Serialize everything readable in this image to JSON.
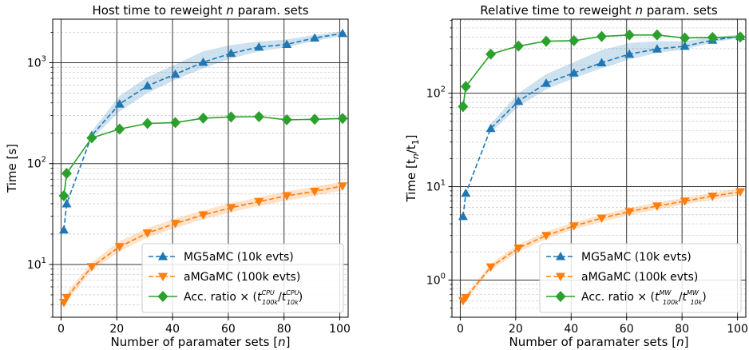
{
  "chart_data": [
    {
      "type": "line",
      "title": "Host time to reweight n param. sets",
      "title_parts": [
        "Host time to reweight ",
        "n",
        " param. sets"
      ],
      "xlabel": "Number of paramater sets [n]",
      "xlabel_parts": [
        "Number of paramater sets [",
        "n",
        "]"
      ],
      "ylabel": "Time [s]",
      "ylabel_parts": [
        "Time [s]"
      ],
      "yscale": "log",
      "xlim": [
        -3,
        103
      ],
      "ylim": [
        3,
        2700
      ],
      "xticks": [
        0,
        20,
        40,
        60,
        80,
        100
      ],
      "xtick_labels": [
        "0",
        "20",
        "40",
        "60",
        "80",
        "100"
      ],
      "yticks": [
        {
          "value": 10,
          "base": "10",
          "exp": "1"
        },
        {
          "value": 100,
          "base": "10",
          "exp": "2"
        },
        {
          "value": 1000,
          "base": "10",
          "exp": "3"
        }
      ],
      "grid": true,
      "legend_position": "lower right",
      "x": [
        1,
        2,
        11,
        21,
        31,
        41,
        51,
        61,
        71,
        81,
        91,
        101
      ],
      "series": [
        {
          "name": "MG5aMC (10k evts)",
          "color": "#1f77b4",
          "marker": "triangle-up",
          "linestyle": "dashed",
          "values": [
            22,
            40,
            190,
            390,
            590,
            770,
            1010,
            1240,
            1430,
            1520,
            1760,
            1950
          ],
          "band_low": [
            null,
            null,
            175,
            330,
            500,
            680,
            880,
            1100,
            1300,
            1420,
            1640,
            1850
          ],
          "band_high": [
            null,
            null,
            210,
            470,
            720,
            960,
            1300,
            1500,
            1620,
            1700,
            1880,
            2050
          ]
        },
        {
          "name": "aMGaMC (100k evts)",
          "color": "#ff7f0e",
          "marker": "triangle-down",
          "linestyle": "dashed",
          "values": [
            4.2,
            4.7,
            9.5,
            15,
            20.5,
            25.5,
            31,
            36.5,
            42,
            48,
            53,
            60
          ],
          "band_low": [
            3.9,
            4.3,
            8.7,
            13.5,
            18.5,
            23,
            28,
            33,
            38,
            43,
            48,
            54
          ],
          "band_high": [
            4.6,
            5.2,
            10.5,
            17,
            23,
            28.5,
            34.5,
            40.5,
            46.5,
            53,
            59,
            66
          ]
        },
        {
          "name": "Acc. ratio × (t^{CPU}_{100k}/t^{CPU}_{10k})",
          "label_sup": "CPU",
          "color": "#2ca02c",
          "marker": "diamond",
          "linestyle": "solid",
          "values": [
            48,
            80,
            180,
            220,
            250,
            255,
            282,
            290,
            292,
            272,
            275,
            280
          ]
        }
      ]
    },
    {
      "type": "line",
      "title": "Relative time to reweight n param. sets",
      "title_parts": [
        "Relative time to reweight ",
        "n",
        " param. sets"
      ],
      "xlabel": "Number of paramater sets [n]",
      "xlabel_parts": [
        "Number of paramater sets [",
        "n",
        "]"
      ],
      "ylabel": "Time [t_n/t_1]",
      "ylabel_parts": [
        "Time [t",
        "n",
        "/t",
        "1",
        "]"
      ],
      "yscale": "log",
      "xlim": [
        -3,
        103
      ],
      "ylim": [
        0.4,
        620
      ],
      "xticks": [
        0,
        20,
        40,
        60,
        80,
        100
      ],
      "xtick_labels": [
        "0",
        "20",
        "40",
        "60",
        "80",
        "100"
      ],
      "yticks": [
        {
          "value": 1,
          "base": "10",
          "exp": "0"
        },
        {
          "value": 10,
          "base": "10",
          "exp": "1"
        },
        {
          "value": 100,
          "base": "10",
          "exp": "2"
        }
      ],
      "grid": true,
      "legend_position": "lower right",
      "x": [
        1,
        2,
        11,
        21,
        31,
        41,
        51,
        61,
        71,
        81,
        91,
        101
      ],
      "series": [
        {
          "name": "MG5aMC (10k evts)",
          "color": "#1f77b4",
          "marker": "triangle-up",
          "linestyle": "dashed",
          "values": [
            4.8,
            8.5,
            42,
            82,
            128,
            165,
            212,
            262,
            298,
            318,
            370,
            405
          ],
          "band_low": [
            null,
            null,
            38,
            72,
            110,
            145,
            185,
            230,
            270,
            295,
            350,
            390
          ],
          "band_high": [
            null,
            null,
            47,
            100,
            160,
            215,
            290,
            345,
            360,
            360,
            400,
            425
          ]
        },
        {
          "name": "aMGaMC (100k evts)",
          "color": "#ff7f0e",
          "marker": "triangle-down",
          "linestyle": "dashed",
          "values": [
            0.6,
            0.65,
            1.38,
            2.2,
            3.0,
            3.8,
            4.6,
            5.4,
            6.2,
            7.0,
            7.9,
            8.8
          ],
          "band_low": [
            0.56,
            0.6,
            1.28,
            2.0,
            2.75,
            3.5,
            4.2,
            4.95,
            5.7,
            6.45,
            7.25,
            8.1
          ],
          "band_high": [
            0.65,
            0.7,
            1.5,
            2.4,
            3.3,
            4.15,
            5.0,
            5.9,
            6.75,
            7.6,
            8.6,
            9.6
          ]
        },
        {
          "name": "Acc. ratio × (t^{MW}_{100k}/t^{MW}_{10k})",
          "label_sup": "MW",
          "color": "#2ca02c",
          "marker": "diamond",
          "linestyle": "solid",
          "values": [
            72,
            118,
            262,
            320,
            360,
            365,
            405,
            420,
            420,
            390,
            395,
            400
          ]
        }
      ]
    }
  ]
}
